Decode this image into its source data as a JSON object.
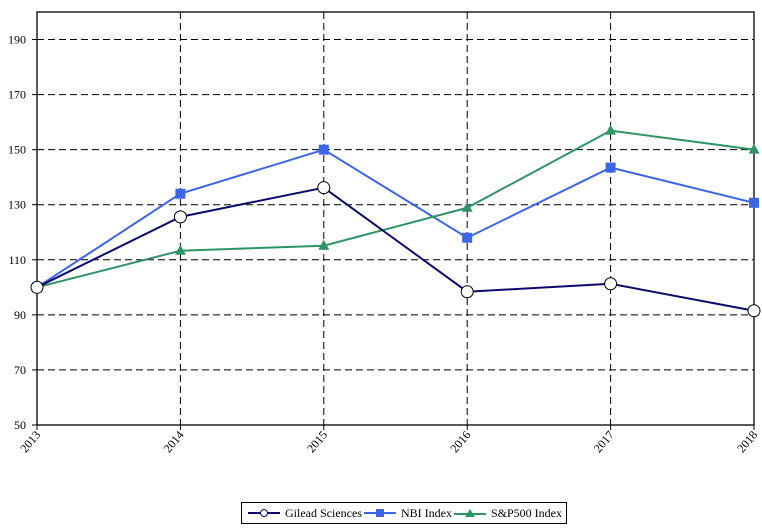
{
  "chart_data": {
    "type": "line",
    "title": "",
    "xlabel": "",
    "ylabel": "",
    "categories": [
      "2013",
      "2014",
      "2015",
      "2016",
      "2017",
      "2018"
    ],
    "yticks": [
      50,
      70,
      90,
      110,
      130,
      150,
      170,
      190
    ],
    "ylim": [
      50,
      200
    ],
    "grid": true,
    "legend_position": "bottom",
    "series": [
      {
        "name": "Gilead Sciences",
        "color": "#0b0b6e",
        "marker": "circle-open",
        "values": [
          100,
          125.6,
          136.2,
          98.4,
          101.3,
          91.5
        ]
      },
      {
        "name": "NBI Index",
        "color": "#3c66e8",
        "marker": "square",
        "values": [
          100,
          134.0,
          150.0,
          118.0,
          143.5,
          130.7
        ]
      },
      {
        "name": "S&P500 Index",
        "color": "#2e9463",
        "marker": "triangle",
        "values": [
          100,
          113.3,
          115.1,
          128.9,
          156.9,
          150.0
        ]
      }
    ]
  },
  "legend": {
    "items": [
      "Gilead Sciences",
      "NBI Index",
      "S&P500 Index"
    ]
  }
}
